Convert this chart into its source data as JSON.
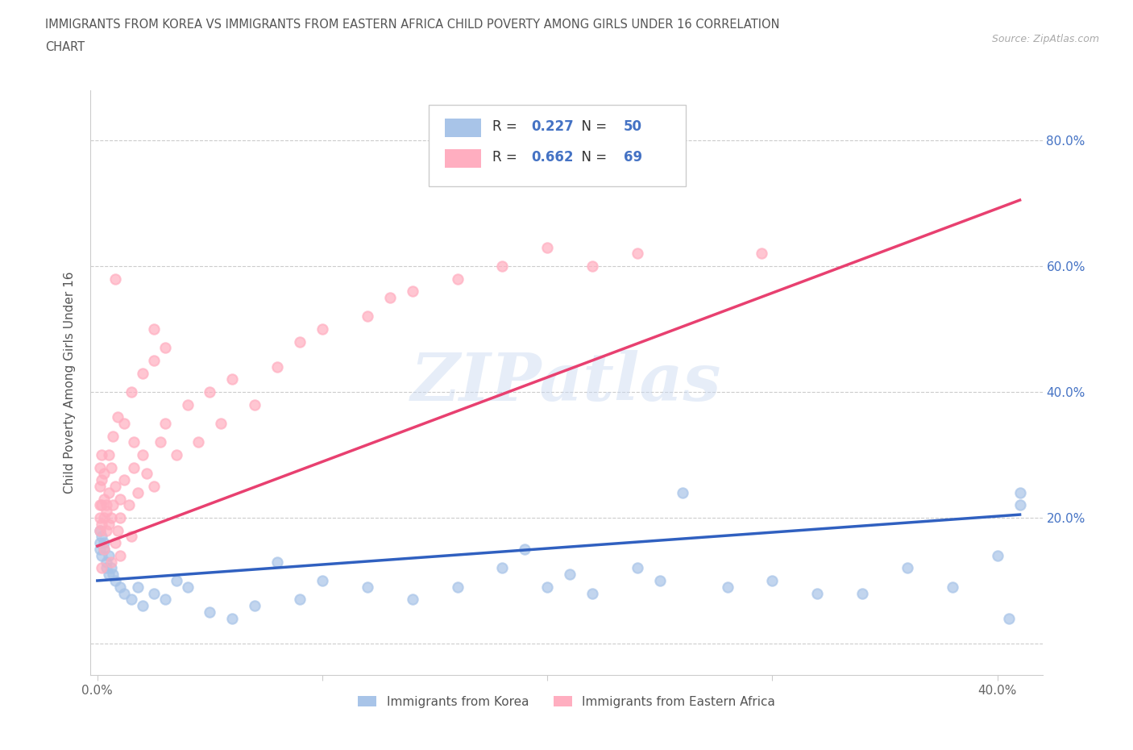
{
  "title": "IMMIGRANTS FROM KOREA VS IMMIGRANTS FROM EASTERN AFRICA CHILD POVERTY AMONG GIRLS UNDER 16 CORRELATION\nCHART",
  "source": "Source: ZipAtlas.com",
  "ylabel": "Child Poverty Among Girls Under 16",
  "xlim": [
    -0.003,
    0.42
  ],
  "ylim": [
    -0.05,
    0.88
  ],
  "xticks": [
    0.0,
    0.1,
    0.2,
    0.3,
    0.4
  ],
  "xticklabels": [
    "0.0%",
    "",
    "",
    "",
    "40.0%"
  ],
  "yticks": [
    0.0,
    0.2,
    0.4,
    0.6,
    0.8
  ],
  "yticklabels_right": [
    "",
    "20.0%",
    "40.0%",
    "60.0%",
    "80.0%"
  ],
  "korea_R": 0.227,
  "korea_N": 50,
  "africa_R": 0.662,
  "africa_N": 69,
  "korea_color": "#a8c4e8",
  "africa_color": "#ffaec0",
  "korea_line_color": "#3060c0",
  "africa_line_color": "#e84070",
  "watermark": "ZIPatlas",
  "korea_line_x0": 0.0,
  "korea_line_y0": 0.1,
  "korea_line_x1": 0.41,
  "korea_line_y1": 0.205,
  "africa_line_x0": 0.0,
  "africa_line_y0": 0.155,
  "africa_line_x1": 0.41,
  "africa_line_y1": 0.705,
  "korea_scatter_x": [
    0.001,
    0.001,
    0.001,
    0.002,
    0.002,
    0.003,
    0.003,
    0.004,
    0.004,
    0.005,
    0.005,
    0.006,
    0.007,
    0.008,
    0.01,
    0.012,
    0.015,
    0.018,
    0.02,
    0.025,
    0.03,
    0.035,
    0.04,
    0.05,
    0.06,
    0.07,
    0.08,
    0.09,
    0.1,
    0.12,
    0.14,
    0.16,
    0.18,
    0.19,
    0.2,
    0.21,
    0.22,
    0.24,
    0.25,
    0.26,
    0.28,
    0.3,
    0.32,
    0.34,
    0.36,
    0.38,
    0.4,
    0.405,
    0.41,
    0.41
  ],
  "korea_scatter_y": [
    0.18,
    0.16,
    0.15,
    0.17,
    0.14,
    0.16,
    0.15,
    0.13,
    0.12,
    0.11,
    0.14,
    0.12,
    0.11,
    0.1,
    0.09,
    0.08,
    0.07,
    0.09,
    0.06,
    0.08,
    0.07,
    0.1,
    0.09,
    0.05,
    0.04,
    0.06,
    0.13,
    0.07,
    0.1,
    0.09,
    0.07,
    0.09,
    0.12,
    0.15,
    0.09,
    0.11,
    0.08,
    0.12,
    0.1,
    0.24,
    0.09,
    0.1,
    0.08,
    0.08,
    0.12,
    0.09,
    0.14,
    0.04,
    0.24,
    0.22
  ],
  "africa_scatter_x": [
    0.001,
    0.001,
    0.001,
    0.001,
    0.001,
    0.002,
    0.002,
    0.002,
    0.002,
    0.003,
    0.003,
    0.003,
    0.004,
    0.004,
    0.005,
    0.005,
    0.006,
    0.006,
    0.007,
    0.008,
    0.009,
    0.01,
    0.01,
    0.012,
    0.014,
    0.016,
    0.018,
    0.02,
    0.022,
    0.025,
    0.028,
    0.03,
    0.035,
    0.04,
    0.045,
    0.05,
    0.055,
    0.06,
    0.07,
    0.08,
    0.09,
    0.1,
    0.12,
    0.13,
    0.14,
    0.16,
    0.18,
    0.2,
    0.22,
    0.24,
    0.01,
    0.015,
    0.008,
    0.006,
    0.003,
    0.004,
    0.005,
    0.007,
    0.002,
    0.009,
    0.025,
    0.03,
    0.015,
    0.02,
    0.012,
    0.025,
    0.008,
    0.016,
    0.295
  ],
  "africa_scatter_y": [
    0.18,
    0.2,
    0.22,
    0.25,
    0.28,
    0.19,
    0.22,
    0.26,
    0.3,
    0.2,
    0.23,
    0.27,
    0.18,
    0.21,
    0.19,
    0.24,
    0.2,
    0.28,
    0.22,
    0.25,
    0.18,
    0.2,
    0.23,
    0.26,
    0.22,
    0.28,
    0.24,
    0.3,
    0.27,
    0.25,
    0.32,
    0.35,
    0.3,
    0.38,
    0.32,
    0.4,
    0.35,
    0.42,
    0.38,
    0.44,
    0.48,
    0.5,
    0.52,
    0.55,
    0.56,
    0.58,
    0.6,
    0.63,
    0.6,
    0.62,
    0.14,
    0.17,
    0.16,
    0.13,
    0.15,
    0.22,
    0.3,
    0.33,
    0.12,
    0.36,
    0.45,
    0.47,
    0.4,
    0.43,
    0.35,
    0.5,
    0.58,
    0.32,
    0.62
  ]
}
